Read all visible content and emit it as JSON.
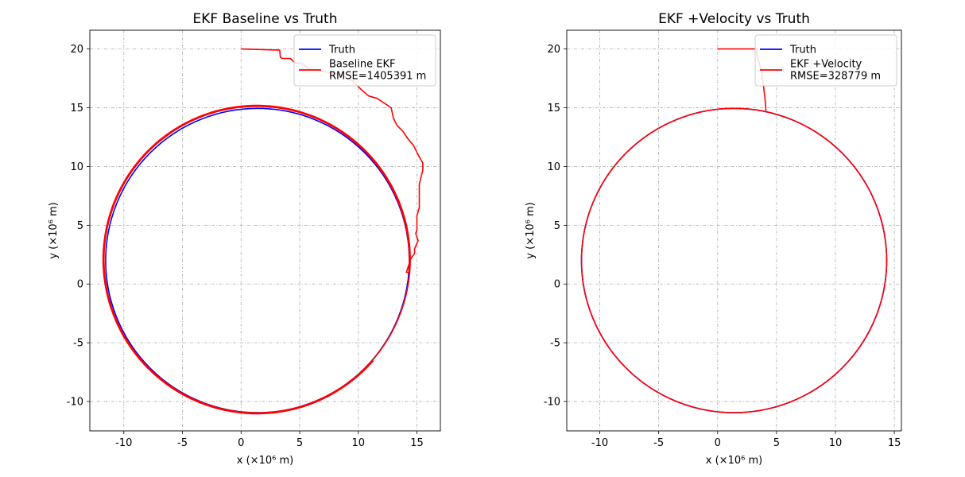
{
  "chart_data": [
    {
      "type": "line",
      "title": "EKF Baseline vs Truth",
      "xlabel": "x (×10⁶ m)",
      "ylabel": "y (×10⁶ m)",
      "xlim": [
        -12.9,
        17.0
      ],
      "ylim": [
        -12.5,
        21.6
      ],
      "x_ticks": [
        -10,
        -5,
        0,
        5,
        10,
        15
      ],
      "y_ticks": [
        -10,
        -5,
        0,
        5,
        10,
        15,
        20
      ],
      "x_tick_labels": [
        "-10",
        "-5",
        "0",
        "5",
        "10",
        "15"
      ],
      "y_tick_labels": [
        "-10",
        "-5",
        "0",
        "5",
        "10",
        "15",
        "20"
      ],
      "grid": true,
      "legend_position": "top-right",
      "legend": [
        "Truth",
        "Baseline EKF\nRMSE=1405391 m"
      ],
      "series": [
        {
          "name": "Truth",
          "color": "#0000ff",
          "shape": "circle",
          "center": [
            1.4,
            2.0
          ],
          "radius": 12.95
        },
        {
          "name": "Baseline EKF\nRMSE=1405391 m",
          "color": "#ff0000",
          "transient": {
            "x": [
              0,
              3.3,
              3.35,
              3.5,
              4.2,
              4.6,
              5.2,
              5.8,
              6.6,
              7.5,
              8.5,
              9.5,
              10.3,
              10.9,
              11.6,
              12.2,
              12.8,
              13.0,
              13.3,
              13.8,
              14.2,
              14.7,
              15.1,
              15.5,
              15.5,
              15.2,
              15.2,
              15.0,
              15.0,
              14.9,
              15.1,
              14.8,
              14.8,
              14.5,
              14.1
            ],
            "y": [
              20.0,
              19.9,
              19.3,
              19.2,
              19.2,
              18.8,
              18.8,
              18.3,
              18.2,
              18.0,
              17.8,
              17.3,
              16.5,
              16.0,
              15.8,
              15.4,
              15.0,
              14.1,
              13.5,
              13.0,
              12.4,
              11.8,
              11.0,
              10.3,
              9.7,
              8.5,
              6.5,
              5.8,
              4.6,
              4.3,
              3.7,
              3.0,
              2.6,
              2.2,
              1.0
            ]
          },
          "orbit_center": [
            1.35,
            2.1
          ],
          "orbit_radius_start": 13.0,
          "orbit_radius_end": 13.15,
          "orbit_turns": 1.9
        }
      ]
    },
    {
      "type": "line",
      "title": "EKF +Velocity vs Truth",
      "xlabel": "x (×10⁶ m)",
      "ylabel": "y (×10⁶ m)",
      "xlim": [
        -12.8,
        15.6
      ],
      "ylim": [
        -12.5,
        21.6
      ],
      "x_ticks": [
        -10,
        -5,
        0,
        5,
        10,
        15
      ],
      "y_ticks": [
        -10,
        -5,
        0,
        5,
        10,
        15,
        20
      ],
      "x_tick_labels": [
        "-10",
        "-5",
        "0",
        "5",
        "10",
        "15"
      ],
      "y_tick_labels": [
        "-10",
        "-5",
        "0",
        "5",
        "10",
        "15",
        "20"
      ],
      "grid": true,
      "legend_position": "top-right",
      "legend": [
        "Truth",
        "EKF +Velocity\nRMSE=328779 m"
      ],
      "series": [
        {
          "name": "Truth",
          "color": "#0000ff",
          "shape": "circle",
          "center": [
            1.4,
            2.0
          ],
          "radius": 12.95
        },
        {
          "name": "EKF +Velocity\nRMSE=328779 m",
          "color": "#ff0000",
          "transient": {
            "x": [
              0,
              3.3,
              3.35,
              3.5,
              3.6,
              3.75,
              3.8,
              3.9,
              4.0,
              4.05,
              4.1
            ],
            "y": [
              20.0,
              20.0,
              19.3,
              19.0,
              18.5,
              18.3,
              17.5,
              16.8,
              16.0,
              15.5,
              14.8
            ]
          },
          "orbit_center": [
            1.4,
            2.0
          ],
          "orbit_radius_start": 12.95,
          "orbit_radius_end": 12.95,
          "orbit_turns": 1.0
        }
      ]
    }
  ]
}
